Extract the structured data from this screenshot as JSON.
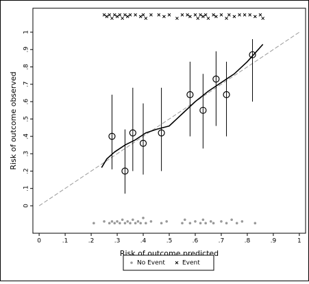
{
  "chart_data": {
    "type": "scatter",
    "x_label": "Risk of outcome predicted",
    "y_label": "Risk of outcome observed",
    "xlim": [
      -0.024,
      1.024
    ],
    "ylim": [
      -0.158,
      1.138
    ],
    "xticks": [
      0,
      {
        "value": 0.1,
        "label": ".1"
      },
      {
        "value": 0.2,
        "label": ".2"
      },
      {
        "value": 0.3,
        "label": ".3"
      },
      {
        "value": 0.4,
        "label": ".4"
      },
      {
        "value": 0.5,
        "label": ".5"
      },
      {
        "value": 0.6,
        "label": ".6"
      },
      {
        "value": 0.7,
        "label": ".7"
      },
      {
        "value": 0.8,
        "label": ".8"
      },
      {
        "value": 0.9,
        "label": ".9"
      },
      1
    ],
    "yticks": [
      0,
      {
        "value": 0.1,
        "label": ".1"
      },
      {
        "value": 0.2,
        "label": ".2"
      },
      {
        "value": 0.3,
        "label": ".3"
      },
      {
        "value": 0.4,
        "label": ".4"
      },
      {
        "value": 0.5,
        "label": ".5"
      },
      {
        "value": 0.6,
        "label": ".6"
      },
      {
        "value": 0.7,
        "label": ".7"
      },
      {
        "value": 0.8,
        "label": ".8"
      },
      {
        "value": 0.9,
        "label": ".9"
      },
      1
    ],
    "reference": {
      "x": [
        0,
        1
      ],
      "values": [
        0,
        1
      ],
      "color": "#999999"
    },
    "smooth": {
      "color": "#000000",
      "x": [
        0.24,
        0.26,
        0.29,
        0.33,
        0.37,
        0.41,
        0.45,
        0.5,
        0.55,
        0.6,
        0.65,
        0.7,
        0.75,
        0.8,
        0.83,
        0.86
      ],
      "values": [
        0.22,
        0.27,
        0.31,
        0.35,
        0.38,
        0.42,
        0.44,
        0.46,
        0.53,
        0.6,
        0.66,
        0.71,
        0.76,
        0.83,
        0.88,
        0.93
      ]
    },
    "groups": {
      "color": "#000000",
      "x": [
        0.28,
        0.33,
        0.36,
        0.4,
        0.47,
        0.58,
        0.63,
        0.68,
        0.72,
        0.82
      ],
      "values": [
        0.4,
        0.2,
        0.42,
        0.36,
        0.42,
        0.64,
        0.55,
        0.73,
        0.64,
        0.87
      ],
      "ci_lower": [
        0.21,
        0.07,
        0.2,
        0.18,
        0.2,
        0.4,
        0.33,
        0.46,
        0.4,
        0.6
      ],
      "ci_upper": [
        0.64,
        0.44,
        0.68,
        0.59,
        0.68,
        0.83,
        0.76,
        0.89,
        0.83,
        0.96
      ]
    },
    "legend": "bottom",
    "series": [
      {
        "name": "No Event",
        "color": "#999999",
        "marker": "circle",
        "x": [
          0.21,
          0.25,
          0.27,
          0.28,
          0.29,
          0.3,
          0.31,
          0.32,
          0.33,
          0.34,
          0.35,
          0.36,
          0.37,
          0.38,
          0.39,
          0.4,
          0.41,
          0.43,
          0.47,
          0.49,
          0.55,
          0.56,
          0.58,
          0.6,
          0.62,
          0.63,
          0.64,
          0.66,
          0.67,
          0.7,
          0.72,
          0.74,
          0.76,
          0.78,
          0.83
        ],
        "values": [
          -0.1,
          -0.09,
          -0.1,
          -0.09,
          -0.1,
          -0.09,
          -0.1,
          -0.08,
          -0.1,
          -0.09,
          -0.1,
          -0.08,
          -0.1,
          -0.09,
          -0.1,
          -0.07,
          -0.1,
          -0.09,
          -0.1,
          -0.09,
          -0.1,
          -0.08,
          -0.1,
          -0.09,
          -0.1,
          -0.08,
          -0.1,
          -0.09,
          -0.1,
          -0.09,
          -0.1,
          -0.08,
          -0.1,
          -0.09,
          -0.1
        ]
      },
      {
        "name": "Event",
        "color": "#000000",
        "marker": "x",
        "x": [
          0.25,
          0.26,
          0.27,
          0.28,
          0.29,
          0.3,
          0.31,
          0.32,
          0.33,
          0.34,
          0.35,
          0.37,
          0.39,
          0.4,
          0.41,
          0.43,
          0.46,
          0.48,
          0.5,
          0.53,
          0.55,
          0.57,
          0.58,
          0.6,
          0.61,
          0.62,
          0.63,
          0.64,
          0.65,
          0.67,
          0.68,
          0.7,
          0.72,
          0.73,
          0.75,
          0.77,
          0.79,
          0.81,
          0.83,
          0.85,
          0.86
        ],
        "values": [
          1.1,
          1.09,
          1.1,
          1.08,
          1.1,
          1.09,
          1.1,
          1.08,
          1.1,
          1.09,
          1.1,
          1.1,
          1.09,
          1.1,
          1.08,
          1.1,
          1.1,
          1.09,
          1.1,
          1.08,
          1.1,
          1.1,
          1.09,
          1.1,
          1.08,
          1.1,
          1.09,
          1.1,
          1.08,
          1.1,
          1.09,
          1.1,
          1.08,
          1.1,
          1.09,
          1.1,
          1.1,
          1.1,
          1.09,
          1.1,
          1.08
        ]
      }
    ]
  }
}
